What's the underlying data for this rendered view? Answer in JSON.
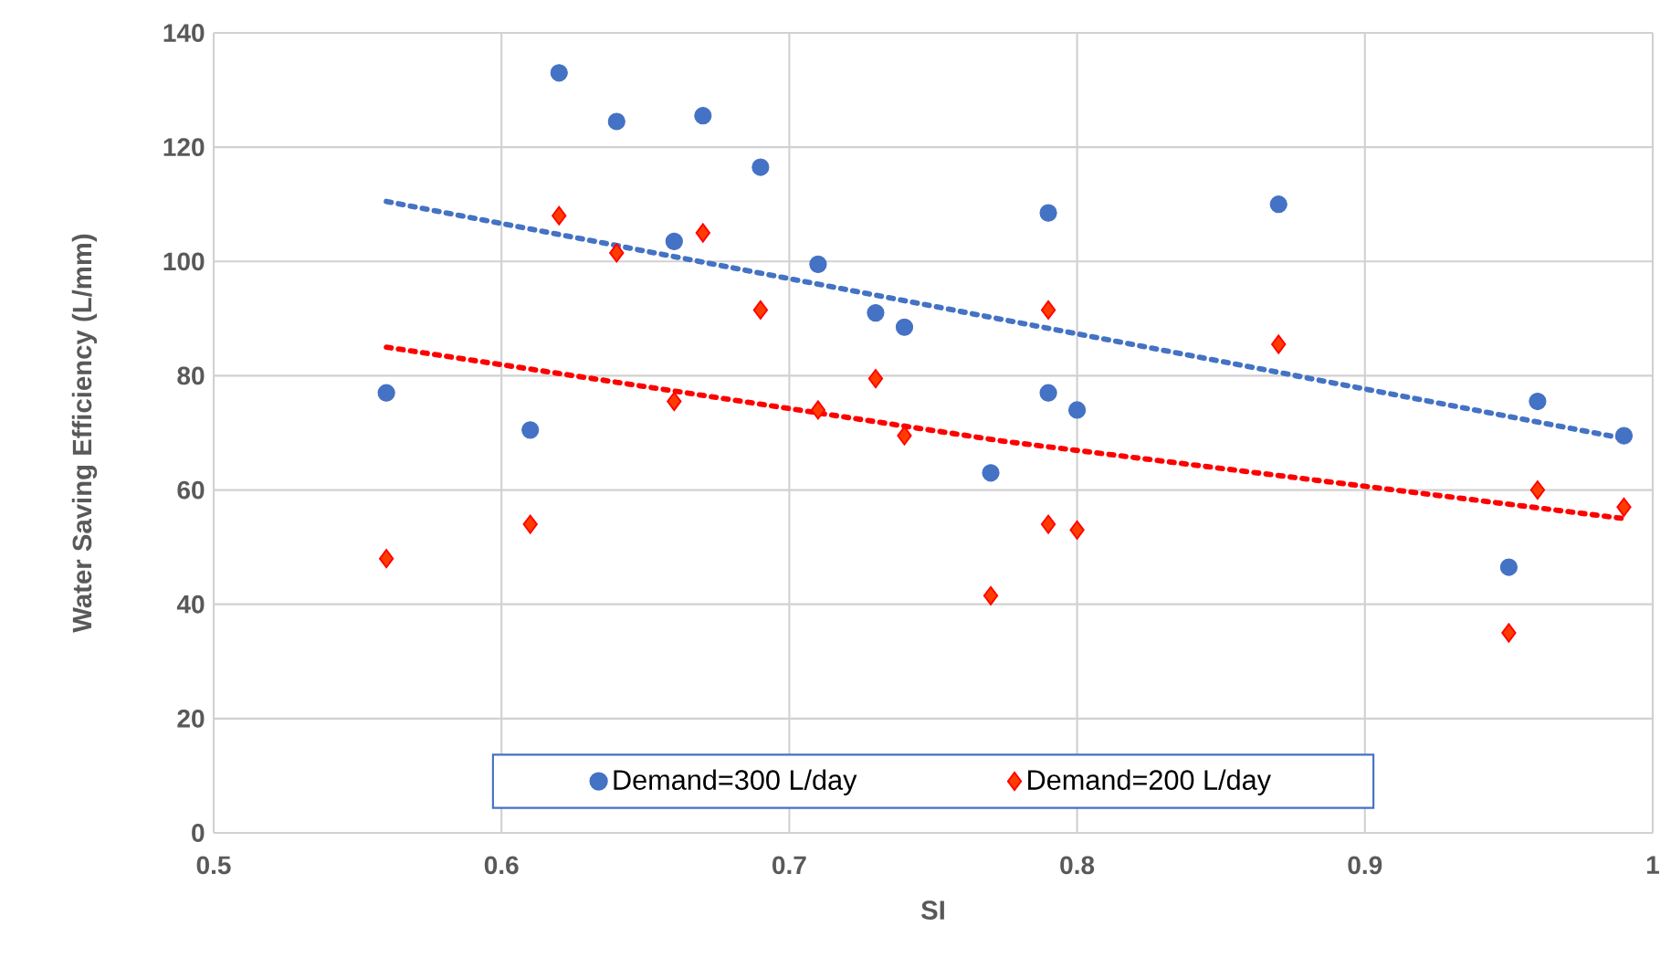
{
  "chart_data": {
    "type": "scatter",
    "xlabel": "SI",
    "ylabel": "Water Saving Efficiency (L/mm)",
    "xlim": [
      0.5,
      1
    ],
    "ylim": [
      0,
      140
    ],
    "xticks": [
      0.5,
      0.6,
      0.7,
      0.8,
      0.9,
      1
    ],
    "yticks": [
      0,
      20,
      40,
      60,
      80,
      100,
      120,
      140
    ],
    "grid": true,
    "legend": "bottom",
    "series": [
      {
        "name": "Demand=300 L/day",
        "color": "#4472c4",
        "marker": "circle",
        "x": [
          0.56,
          0.61,
          0.62,
          0.64,
          0.66,
          0.67,
          0.69,
          0.71,
          0.73,
          0.74,
          0.77,
          0.79,
          0.79,
          0.8,
          0.87,
          0.95,
          0.96,
          0.99
        ],
        "values": [
          77,
          70.5,
          133,
          124.5,
          103.5,
          125.5,
          116.5,
          99.5,
          91,
          88.5,
          63,
          108.5,
          77,
          74,
          110,
          46.5,
          75.5,
          69.5
        ]
      },
      {
        "name": "Demand=200 L/day",
        "color": "#ff3c00",
        "marker": "diamond",
        "x": [
          0.56,
          0.61,
          0.62,
          0.64,
          0.66,
          0.67,
          0.69,
          0.71,
          0.73,
          0.74,
          0.77,
          0.79,
          0.79,
          0.8,
          0.87,
          0.95,
          0.96,
          0.99
        ],
        "values": [
          48,
          54,
          108,
          101.5,
          75.5,
          105,
          91.5,
          74,
          79.5,
          69.5,
          41.5,
          91.5,
          54,
          53,
          85.5,
          35,
          60,
          57
        ]
      },
      {
        "type": "line",
        "color": "#4472c4",
        "line_style": "dotted",
        "x": [
          0.56,
          0.99
        ],
        "values": [
          110.5,
          69
        ]
      },
      {
        "type": "line",
        "color": "#ff0000",
        "line_style": "dotted",
        "x": [
          0.56,
          0.775,
          0.99
        ],
        "values": [
          85,
          68.5,
          55
        ]
      }
    ]
  }
}
